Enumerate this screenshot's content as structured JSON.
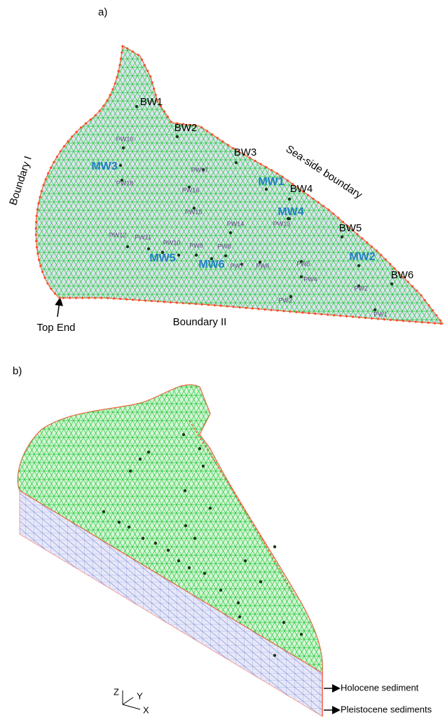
{
  "panel_a": {
    "label": "a)",
    "boundary_wells": [
      "BW1",
      "BW2",
      "BW3",
      "BW4",
      "BW5",
      "BW6"
    ],
    "monitoring_wells": [
      "MW1",
      "MW2",
      "MW3",
      "MW4",
      "MW5",
      "MW6"
    ],
    "pumping_wells": [
      "PW1",
      "PW2",
      "PW3",
      "PW4",
      "PW5",
      "PW6",
      "PW7",
      "PW8",
      "PW9",
      "PW10",
      "PW11",
      "PW12",
      "PW13",
      "PW14",
      "PW15",
      "PW16",
      "PW17",
      "PW18",
      "PW19"
    ],
    "boundaries": [
      "Boundary I",
      "Boundary II",
      "Sea-side boundary"
    ],
    "top_end": "Top End"
  },
  "panel_b": {
    "label": "b)",
    "layers": [
      "Holocene sediment",
      "Pleistocene sediments"
    ],
    "axes": [
      "Z",
      "Y",
      "X"
    ]
  }
}
